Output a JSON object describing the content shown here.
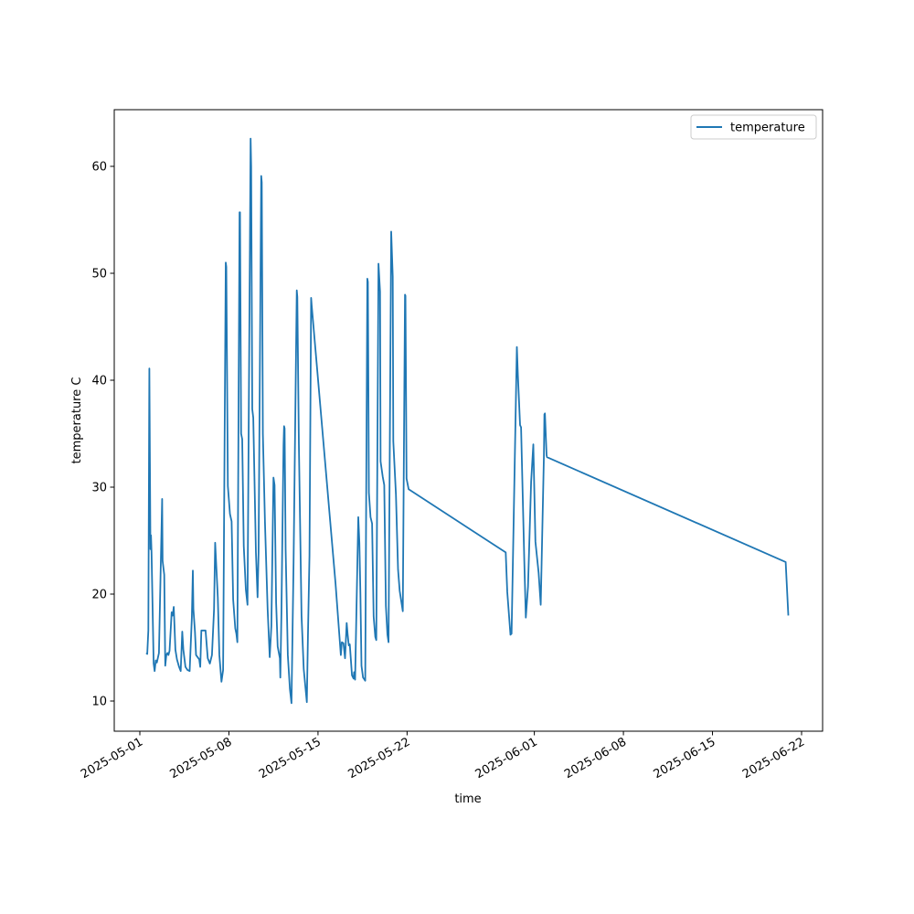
{
  "chart_data": {
    "type": "line",
    "title": "",
    "xlabel": "time",
    "ylabel": "temperature C",
    "x_kind": "date",
    "xlim": [
      "2024-04-30T22:30",
      "2025-06-23T04:00"
    ],
    "ylim": [
      7.2,
      65.2
    ],
    "legend": {
      "placement": "top-right",
      "entries": [
        "temperature"
      ]
    },
    "grid": false,
    "x_ticks": [
      "2025-05-01",
      "2025-05-08",
      "2025-05-15",
      "2025-05-22",
      "2025-06-01",
      "2025-06-08",
      "2025-06-15",
      "2025-06-22"
    ],
    "y_ticks": [
      10,
      20,
      30,
      40,
      50,
      60
    ],
    "series": [
      {
        "name": "temperature",
        "color": "#1f77b4",
        "points": [
          [
            "2025-05-01T12:00",
            14.5
          ],
          [
            "2025-05-01T14:00",
            14.4
          ],
          [
            "2025-05-01T16:00",
            16.6
          ],
          [
            "2025-05-01T18:00",
            41.1
          ],
          [
            "2025-05-01T20:00",
            24.2
          ],
          [
            "2025-05-01T21:00",
            25.5
          ],
          [
            "2025-05-01T22:00",
            23.9
          ],
          [
            "2025-05-02T02:00",
            13.5
          ],
          [
            "2025-05-02T04:00",
            12.8
          ],
          [
            "2025-05-02T06:00",
            13.8
          ],
          [
            "2025-05-02T08:00",
            13.6
          ],
          [
            "2025-05-02T12:00",
            14.5
          ],
          [
            "2025-05-02T18:00",
            28.9
          ],
          [
            "2025-05-02T19:00",
            23.1
          ],
          [
            "2025-05-02T22:00",
            21.8
          ],
          [
            "2025-05-03T00:00",
            13.3
          ],
          [
            "2025-05-03T02:00",
            14.3
          ],
          [
            "2025-05-03T04:00",
            14.5
          ],
          [
            "2025-05-03T06:00",
            14.3
          ],
          [
            "2025-05-03T08:00",
            14.7
          ],
          [
            "2025-05-03T12:00",
            18.3
          ],
          [
            "2025-05-03T14:00",
            18.0
          ],
          [
            "2025-05-03T16:00",
            18.8
          ],
          [
            "2025-05-03T19:00",
            14.8
          ],
          [
            "2025-05-03T22:00",
            13.9
          ],
          [
            "2025-05-04T02:00",
            13.2
          ],
          [
            "2025-05-04T05:00",
            12.8
          ],
          [
            "2025-05-04T08:00",
            16.5
          ],
          [
            "2025-05-04T10:00",
            14.8
          ],
          [
            "2025-05-04T14:00",
            13.2
          ],
          [
            "2025-05-04T18:00",
            12.9
          ],
          [
            "2025-05-04T22:00",
            12.8
          ],
          [
            "2025-05-05T02:00",
            17.8
          ],
          [
            "2025-05-05T04:00",
            22.2
          ],
          [
            "2025-05-05T05:00",
            18.6
          ],
          [
            "2025-05-05T08:00",
            16.5
          ],
          [
            "2025-05-05T10:00",
            14.3
          ],
          [
            "2025-05-05T16:00",
            13.9
          ],
          [
            "2025-05-05T18:00",
            13.2
          ],
          [
            "2025-05-05T20:00",
            16.6
          ],
          [
            "2025-05-06T00:00",
            16.6
          ],
          [
            "2025-05-06T04:00",
            16.6
          ],
          [
            "2025-05-06T08:00",
            14.0
          ],
          [
            "2025-05-06T12:00",
            13.5
          ],
          [
            "2025-05-06T16:00",
            14.3
          ],
          [
            "2025-05-06T20:00",
            18.6
          ],
          [
            "2025-05-06T22:00",
            24.8
          ],
          [
            "2025-05-07T03:00",
            19.7
          ],
          [
            "2025-05-07T06:00",
            14.3
          ],
          [
            "2025-05-07T10:00",
            11.8
          ],
          [
            "2025-05-07T13:00",
            12.9
          ],
          [
            "2025-05-07T18:00",
            51.0
          ],
          [
            "2025-05-07T19:00",
            50.6
          ],
          [
            "2025-05-07T22:00",
            30.1
          ],
          [
            "2025-05-08T02:00",
            27.5
          ],
          [
            "2025-05-08T05:00",
            26.8
          ],
          [
            "2025-05-08T08:00",
            19.5
          ],
          [
            "2025-05-08T12:00",
            16.8
          ],
          [
            "2025-05-08T14:00",
            16.3
          ],
          [
            "2025-05-08T16:00",
            15.5
          ],
          [
            "2025-05-08T20:00",
            55.7
          ],
          [
            "2025-05-08T21:00",
            55.7
          ],
          [
            "2025-05-08T23:00",
            35.0
          ],
          [
            "2025-05-09T01:00",
            34.5
          ],
          [
            "2025-05-09T04:00",
            24.5
          ],
          [
            "2025-05-09T08:00",
            20.4
          ],
          [
            "2025-05-09T11:00",
            19.0
          ],
          [
            "2025-05-09T17:00",
            62.6
          ],
          [
            "2025-05-09T18:00",
            60.0
          ],
          [
            "2025-05-09T20:00",
            37.3
          ],
          [
            "2025-05-09T22:00",
            36.5
          ],
          [
            "2025-05-10T03:00",
            23.9
          ],
          [
            "2025-05-10T06:00",
            19.7
          ],
          [
            "2025-05-10T08:00",
            23.9
          ],
          [
            "2025-05-10T13:00",
            59.1
          ],
          [
            "2025-05-10T14:00",
            58.5
          ],
          [
            "2025-05-10T16:00",
            35.0
          ],
          [
            "2025-05-10T20:00",
            26.7
          ],
          [
            "2025-05-11T01:00",
            18.6
          ],
          [
            "2025-05-11T05:00",
            14.1
          ],
          [
            "2025-05-11T08:00",
            17.0
          ],
          [
            "2025-05-11T12:00",
            30.9
          ],
          [
            "2025-05-11T14:00",
            30.2
          ],
          [
            "2025-05-11T17:00",
            19.2
          ],
          [
            "2025-05-11T20:00",
            15.1
          ],
          [
            "2025-05-12T00:00",
            14.0
          ],
          [
            "2025-05-12T01:00",
            12.2
          ],
          [
            "2025-05-12T03:00",
            18.2
          ],
          [
            "2025-05-12T07:00",
            33.9
          ],
          [
            "2025-05-12T08:00",
            35.7
          ],
          [
            "2025-05-12T09:00",
            35.5
          ],
          [
            "2025-05-12T11:00",
            24.2
          ],
          [
            "2025-05-12T15:00",
            14.3
          ],
          [
            "2025-05-12T19:00",
            11.1
          ],
          [
            "2025-05-12T22:00",
            9.8
          ],
          [
            "2025-05-13T02:00",
            23.0
          ],
          [
            "2025-05-13T08:00",
            48.4
          ],
          [
            "2025-05-13T09:00",
            47.8
          ],
          [
            "2025-05-13T12:00",
            34.0
          ],
          [
            "2025-05-13T17:00",
            18.0
          ],
          [
            "2025-05-13T21:00",
            13.0
          ],
          [
            "2025-05-14T03:00",
            9.9
          ],
          [
            "2025-05-14T05:00",
            16.0
          ],
          [
            "2025-05-14T08:00",
            23.6
          ],
          [
            "2025-05-14T11:00",
            47.7
          ],
          [
            "2025-05-14T12:00",
            47.0
          ],
          [
            "2025-05-16T09:00",
            21.0
          ],
          [
            "2025-05-16T19:00",
            14.3
          ],
          [
            "2025-05-16T21:00",
            15.5
          ],
          [
            "2025-05-17T00:00",
            15.4
          ],
          [
            "2025-05-17T03:00",
            14.0
          ],
          [
            "2025-05-17T06:00",
            17.3
          ],
          [
            "2025-05-17T08:00",
            16.2
          ],
          [
            "2025-05-17T10:00",
            15.2
          ],
          [
            "2025-05-17T12:00",
            15.3
          ],
          [
            "2025-05-17T16:00",
            12.4
          ],
          [
            "2025-05-17T19:00",
            12.1
          ],
          [
            "2025-05-17T20:00",
            12.7
          ],
          [
            "2025-05-17T22:00",
            12.0
          ],
          [
            "2025-05-18T04:00",
            27.2
          ],
          [
            "2025-05-18T06:00",
            24.8
          ],
          [
            "2025-05-18T08:00",
            20.1
          ],
          [
            "2025-05-18T10:00",
            13.3
          ],
          [
            "2025-05-18T13:00",
            12.2
          ],
          [
            "2025-05-18T17:00",
            11.9
          ],
          [
            "2025-05-18T21:00",
            49.5
          ],
          [
            "2025-05-18T22:00",
            49.2
          ],
          [
            "2025-05-19T00:00",
            29.5
          ],
          [
            "2025-05-19T03:00",
            27.2
          ],
          [
            "2025-05-19T06:00",
            26.6
          ],
          [
            "2025-05-19T09:00",
            17.9
          ],
          [
            "2025-05-19T12:00",
            16.0
          ],
          [
            "2025-05-19T14:00",
            15.7
          ],
          [
            "2025-05-19T18:00",
            50.9
          ],
          [
            "2025-05-19T21:00",
            48.3
          ],
          [
            "2025-05-19T22:00",
            32.4
          ],
          [
            "2025-05-20T02:00",
            31.0
          ],
          [
            "2025-05-20T05:00",
            30.2
          ],
          [
            "2025-05-20T08:00",
            18.9
          ],
          [
            "2025-05-20T11:00",
            16.2
          ],
          [
            "2025-05-20T13:00",
            15.5
          ],
          [
            "2025-05-20T18:00",
            53.9
          ],
          [
            "2025-05-20T21:00",
            49.7
          ],
          [
            "2025-05-20T22:00",
            34.3
          ],
          [
            "2025-05-21T03:00",
            29.3
          ],
          [
            "2025-05-21T07:00",
            22.3
          ],
          [
            "2025-05-21T10:00",
            20.3
          ],
          [
            "2025-05-21T16:00",
            18.4
          ],
          [
            "2025-05-21T20:00",
            48.0
          ],
          [
            "2025-05-21T21:00",
            47.9
          ],
          [
            "2025-05-21T23:00",
            30.8
          ],
          [
            "2025-05-22T03:00",
            29.8
          ],
          [
            "2025-05-29T18:00",
            23.9
          ],
          [
            "2025-05-29T21:00",
            20.2
          ],
          [
            "2025-05-30T03:00",
            16.2
          ],
          [
            "2025-05-30T05:00",
            16.3
          ],
          [
            "2025-05-30T15:00",
            43.1
          ],
          [
            "2025-05-30T17:00",
            40.5
          ],
          [
            "2025-05-30T21:00",
            35.8
          ],
          [
            "2025-05-30T23:00",
            35.6
          ],
          [
            "2025-05-31T05:00",
            23.2
          ],
          [
            "2025-05-31T08:00",
            17.8
          ],
          [
            "2025-05-31T12:00",
            20.7
          ],
          [
            "2025-05-31T18:00",
            30.5
          ],
          [
            "2025-05-31T22:00",
            34.0
          ],
          [
            "2025-06-01T02:00",
            24.9
          ],
          [
            "2025-06-01T08:00",
            22.0
          ],
          [
            "2025-06-01T12:00",
            19.0
          ],
          [
            "2025-06-01T18:00",
            33.0
          ],
          [
            "2025-06-01T19:00",
            36.8
          ],
          [
            "2025-06-01T20:00",
            36.9
          ],
          [
            "2025-06-01T23:00",
            33.0
          ],
          [
            "2025-06-02T00:00",
            32.8
          ],
          [
            "2025-06-20T18:00",
            23.0
          ],
          [
            "2025-06-20T23:00",
            18.0
          ]
        ]
      }
    ]
  }
}
